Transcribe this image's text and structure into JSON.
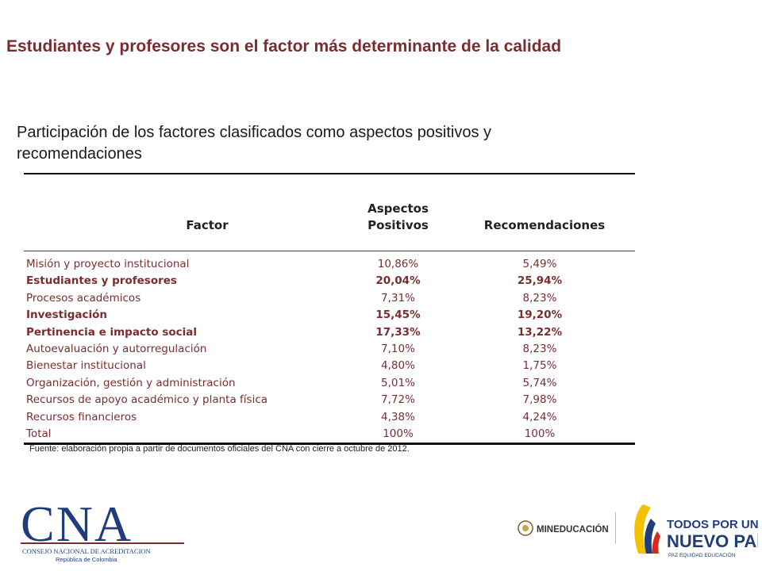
{
  "header": {
    "title": "Estudiantes y profesores son el factor más determinante de la calidad"
  },
  "subtitle": "Participación de los factores clasificados como aspectos positivos y recomendaciones",
  "table": {
    "columns": {
      "factor": "Factor",
      "positive_line1": "Aspectos",
      "positive_line2": "Positivos",
      "recommendations": "Recomendaciones"
    },
    "rows": [
      {
        "factor": "Misión y proyecto institucional",
        "positive": "10,86%",
        "recommendations": "5,49%",
        "bold": false
      },
      {
        "factor": "Estudiantes y profesores",
        "positive": "20,04%",
        "recommendations": "25,94%",
        "bold": true
      },
      {
        "factor": "Procesos académicos",
        "positive": "7,31%",
        "recommendations": "8,23%",
        "bold": false
      },
      {
        "factor": "Investigación",
        "positive": "15,45%",
        "recommendations": "19,20%",
        "bold": true
      },
      {
        "factor": "Pertinencia e impacto social",
        "positive": "17,33%",
        "recommendations": "13,22%",
        "bold": true
      },
      {
        "factor": "Autoevaluación y autorregulación",
        "positive": "7,10%",
        "recommendations": "8,23%",
        "bold": false
      },
      {
        "factor": "Bienestar institucional",
        "positive": "4,80%",
        "recommendations": "1,75%",
        "bold": false
      },
      {
        "factor": "Organización, gestión y administración",
        "positive": "5,01%",
        "recommendations": "5,74%",
        "bold": false
      },
      {
        "factor": "Recursos de apoyo académico y planta física",
        "positive": "7,72%",
        "recommendations": "7,98%",
        "bold": false
      },
      {
        "factor": "Recursos financieros",
        "positive": "4,38%",
        "recommendations": "4,24%",
        "bold": false
      },
      {
        "factor": "Total",
        "positive": "100%",
        "recommendations": "100%",
        "bold": false
      }
    ]
  },
  "source": "Fuente: elaboración propia a partir de documentos oficiales del CNA con cierre a octubre de 2012.",
  "logos": {
    "cna_name": "CNA",
    "cna_line1": "CONSEJO NACIONAL DE ACREDITACION",
    "cna_line2": "República de Colombia",
    "ministry": "MINEDUCACIÓN",
    "gov_line1": "TODOS POR UN",
    "gov_line2": "NUEVO PAÍS",
    "gov_line3": "PAZ  EQUIDAD  EDUCACIÓN"
  },
  "colors": {
    "accent": "#7b2c2e",
    "gov_blue": "#1f3d7a",
    "yellow": "#f2c200",
    "red": "#d52b1e"
  }
}
